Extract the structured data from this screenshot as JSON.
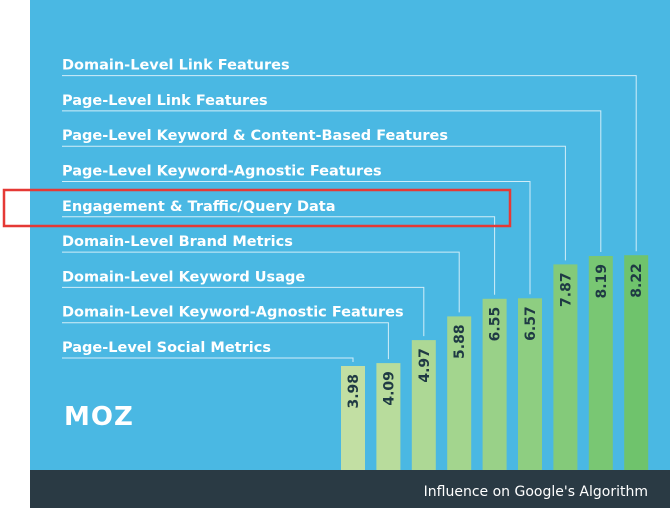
{
  "brand": {
    "logo_text": "MOZ"
  },
  "colors": {
    "background": "#4ab8e3",
    "footer": "#2a3a44",
    "highlight": "#e53935",
    "bar_light": "#c2dfa3",
    "bar_dark": "#6fc36c"
  },
  "highlighted_category": "Engagement & Traffic/Query Data",
  "chart_data": {
    "type": "bar",
    "title": "",
    "xlabel": "Influence on Google's Algorithm",
    "ylabel": "",
    "grid": false,
    "legend": "none",
    "categories": [
      "Page-Level Social Metrics",
      "Domain-Level Keyword-Agnostic Features",
      "Domain-Level Keyword Usage",
      "Domain-Level Brand Metrics",
      "Engagement & Traffic/Query Data",
      "Page-Level Keyword-Agnostic Features",
      "Page-Level Keyword & Content-Based Features",
      "Page-Level Link Features",
      "Domain-Level Link Features"
    ],
    "values": [
      3.98,
      4.09,
      4.97,
      5.88,
      6.55,
      6.57,
      7.87,
      8.19,
      8.22
    ],
    "value_labels": [
      "3.98",
      "4.09",
      "4.97",
      "5.88",
      "6.55",
      "6.57",
      "7.87",
      "8.19",
      "8.22"
    ]
  }
}
